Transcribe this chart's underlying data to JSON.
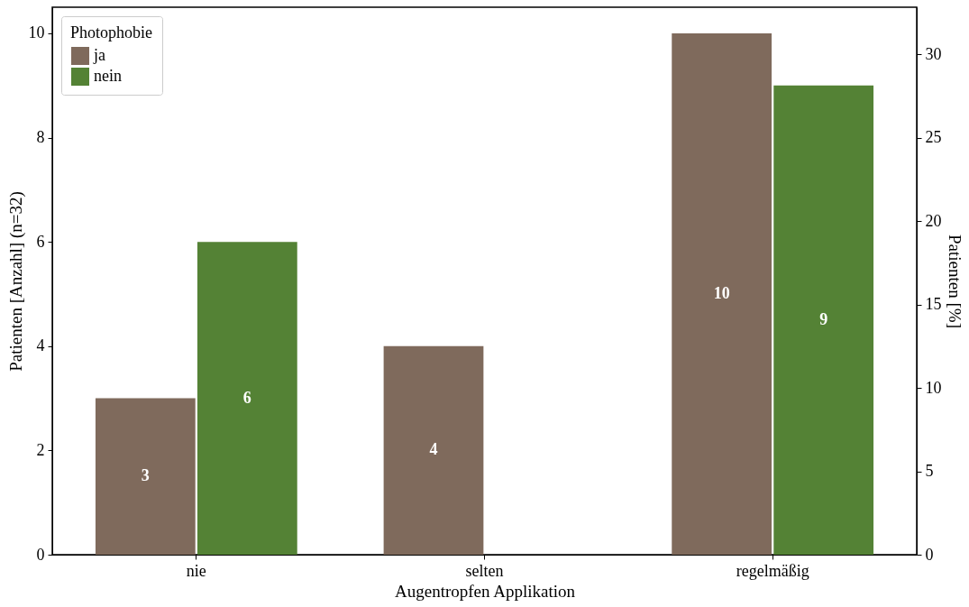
{
  "chart_data": {
    "type": "bar",
    "categories": [
      "nie",
      "selten",
      "regelmäßig"
    ],
    "series": [
      {
        "name": "ja",
        "color": "#7f6a5c",
        "values": [
          3,
          4,
          10
        ]
      },
      {
        "name": "nein",
        "color": "#548235",
        "values": [
          6,
          null,
          9
        ]
      }
    ],
    "xlabel": "Augentropfen Applikation",
    "ylabel": "Patienten [Anzahl] (n=32)",
    "y2label": "Patienten [%]",
    "ylim": [
      0,
      10.5
    ],
    "yticks": [
      0,
      2,
      4,
      6,
      8,
      10
    ],
    "y2lim": [
      0,
      32.8125
    ],
    "y2ticks": [
      0,
      5,
      10,
      15,
      20,
      25,
      30
    ],
    "legend_title": "Photophobie",
    "legend": "top left",
    "grid": false,
    "data_labels": true
  }
}
